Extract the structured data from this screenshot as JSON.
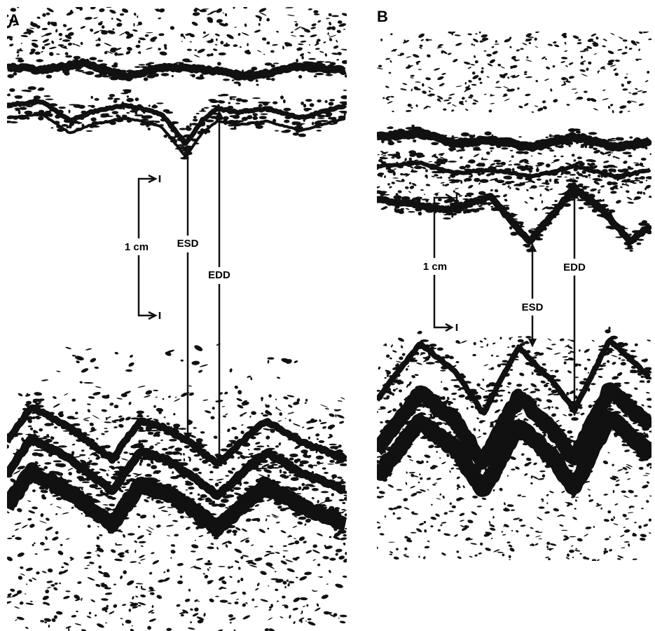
{
  "panels": [
    {
      "label": "A",
      "scale_label": "1 cm",
      "esd_label": "ESD",
      "edd_label": "EDD"
    },
    {
      "label": "B",
      "scale_label": "1 cm",
      "esd_label": "ESD",
      "edd_label": "EDD"
    }
  ]
}
